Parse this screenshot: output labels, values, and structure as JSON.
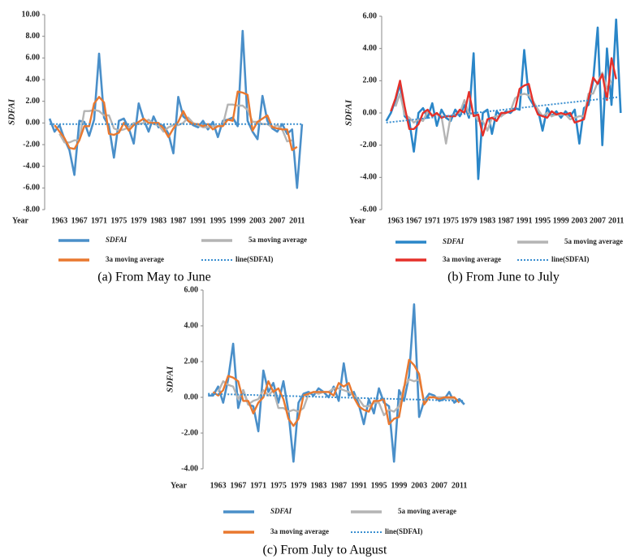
{
  "chart_data": [
    {
      "type": "line",
      "caption": "(a) From May to June",
      "y_label": "SDFAI",
      "x_label": "Year",
      "x": [
        1961,
        1962,
        1963,
        1964,
        1965,
        1966,
        1967,
        1968,
        1969,
        1970,
        1971,
        1972,
        1973,
        1974,
        1975,
        1976,
        1977,
        1978,
        1979,
        1980,
        1981,
        1982,
        1983,
        1984,
        1985,
        1986,
        1987,
        1988,
        1989,
        1990,
        1991,
        1992,
        1993,
        1994,
        1995,
        1996,
        1997,
        1998,
        1999,
        2000,
        2001,
        2002,
        2003,
        2004,
        2005,
        2006,
        2007,
        2008,
        2009,
        2010,
        2011,
        2012
      ],
      "series": [
        {
          "name": "SDFAI",
          "color": "#4a8fc9",
          "values": [
            0.4,
            -0.8,
            -0.2,
            -1.5,
            -2.5,
            -4.8,
            0.2,
            0.1,
            -1.2,
            0.3,
            6.4,
            0.5,
            -0.3,
            -3.2,
            0.2,
            0.4,
            -0.5,
            -1.9,
            1.8,
            0.3,
            -0.8,
            0.6,
            -0.4,
            -0.2,
            -1.0,
            -2.8,
            2.4,
            0.6,
            0.2,
            -0.2,
            -0.4,
            0.2,
            -0.6,
            0.1,
            -1.3,
            0.2,
            0.3,
            0.5,
            -0.3,
            8.5,
            0.2,
            -0.8,
            -1.5,
            2.5,
            0.2,
            -0.5,
            -0.8,
            -0.1,
            -1.0,
            -0.6,
            -6.0,
            -0.1
          ]
        },
        {
          "name": "5a moving average",
          "color": "#b4b4b4",
          "values": [
            null,
            null,
            -1.0,
            -1.8,
            -1.8,
            -1.6,
            -1.6,
            1.1,
            1.1,
            1.2,
            1.1,
            0.7,
            0.7,
            -0.5,
            -0.7,
            -0.6,
            -0.4,
            0.0,
            -0.1,
            0.0,
            0.3,
            -0.1,
            -0.2,
            -0.8,
            -0.4,
            -0.2,
            -0.2,
            0.0,
            0.5,
            0.0,
            -0.2,
            -0.4,
            -0.4,
            -0.3,
            -0.3,
            -0.2,
            1.7,
            1.7,
            1.6,
            1.6,
            1.2,
            0.1,
            0.1,
            -0.1,
            -0.1,
            -0.4,
            -0.2,
            -0.6,
            -1.7,
            -1.6,
            null,
            null
          ]
        },
        {
          "name": "3a moving average",
          "color": "#e9782f",
          "values": [
            null,
            -0.2,
            -0.8,
            -1.4,
            -2.3,
            -2.4,
            -1.6,
            -0.3,
            -0.3,
            1.8,
            2.4,
            1.9,
            -1.0,
            -1.1,
            -0.9,
            0.0,
            -0.7,
            -0.2,
            0.1,
            0.4,
            0.0,
            0.0,
            0.0,
            -0.5,
            -1.3,
            -0.5,
            0.1,
            1.1,
            0.2,
            -0.1,
            -0.1,
            -0.3,
            -0.1,
            -0.6,
            -0.3,
            -0.3,
            0.3,
            0.2,
            2.9,
            2.8,
            2.6,
            -0.7,
            0.1,
            0.4,
            0.7,
            -0.4,
            -0.5,
            -0.6,
            -0.6,
            -2.5,
            -2.2,
            null
          ]
        },
        {
          "name": "line(SDFAI)",
          "color": "#3a8fd0",
          "dotted": true,
          "x": [
            1961,
            2012
          ],
          "values": [
            -0.1,
            -0.1
          ]
        }
      ],
      "xlim": [
        1960,
        2013
      ],
      "xticks": [
        1963,
        1967,
        1971,
        1975,
        1979,
        1983,
        1987,
        1991,
        1995,
        1999,
        2003,
        2007,
        2011
      ],
      "ylim": [
        -8,
        10
      ],
      "yticks": [
        {
          "value": -8,
          "label": "-8.00"
        },
        {
          "value": -6,
          "label": "-6.00"
        },
        {
          "value": -4,
          "label": "-4.00"
        },
        {
          "value": -2,
          "label": "-2.00"
        },
        {
          "value": 0,
          "label": "0.00"
        },
        {
          "value": 2,
          "label": "2.00"
        },
        {
          "value": 4,
          "label": "4.00"
        },
        {
          "value": 6,
          "label": "6.00"
        },
        {
          "value": 8,
          "label": "8.00"
        },
        {
          "value": 10,
          "label": "10.00"
        }
      ]
    },
    {
      "type": "line",
      "caption": "(b) From June to July",
      "y_label": "SDFAI",
      "x_label": "Year",
      "x": [
        1961,
        1962,
        1963,
        1964,
        1965,
        1966,
        1967,
        1968,
        1969,
        1970,
        1971,
        1972,
        1973,
        1974,
        1975,
        1976,
        1977,
        1978,
        1979,
        1980,
        1981,
        1982,
        1983,
        1984,
        1985,
        1986,
        1987,
        1988,
        1989,
        1990,
        1991,
        1992,
        1993,
        1994,
        1995,
        1996,
        1997,
        1998,
        1999,
        2000,
        2001,
        2002,
        2003,
        2004,
        2005,
        2006,
        2007,
        2008,
        2009,
        2010,
        2011,
        2012
      ],
      "series": [
        {
          "name": "SDFAI",
          "color": "#2a86c8",
          "values": [
            -0.5,
            0.0,
            0.8,
            1.8,
            -0.2,
            -0.5,
            -2.4,
            0.0,
            0.3,
            -0.3,
            0.6,
            -0.8,
            0.2,
            -0.3,
            -0.5,
            0.2,
            -0.2,
            0.5,
            -0.3,
            3.7,
            -4.1,
            0.0,
            0.2,
            -1.3,
            0.1,
            -0.2,
            0.1,
            0.0,
            0.3,
            0.2,
            3.9,
            1.0,
            0.5,
            0.2,
            -1.1,
            0.3,
            -0.2,
            0.1,
            -0.3,
            0.1,
            -0.2,
            0.2,
            -1.9,
            0.3,
            0.5,
            2.0,
            5.3,
            -2.0,
            4.0,
            0.5,
            5.8,
            0.0
          ]
        },
        {
          "name": "5a moving average",
          "color": "#b4b4b4",
          "values": [
            null,
            null,
            0.4,
            1.2,
            -0.1,
            -0.3,
            -0.6,
            -0.4,
            -0.5,
            0.1,
            -0.1,
            -0.1,
            -0.2,
            -1.9,
            -0.2,
            -0.1,
            0.0,
            0.8,
            -0.1,
            0.0,
            -0.5,
            -0.5,
            -1.1,
            -0.3,
            -0.2,
            -0.2,
            0.0,
            0.1,
            0.9,
            1.1,
            1.2,
            1.1,
            0.7,
            0.2,
            -0.2,
            0.0,
            -0.2,
            -0.1,
            -0.1,
            -0.1,
            -0.4,
            -0.3,
            -0.2,
            -0.2,
            1.2,
            1.2,
            1.9,
            2.5,
            1.5,
            2.0,
            null,
            null
          ]
        },
        {
          "name": "3a moving average",
          "color": "#e5302a",
          "values": [
            null,
            0.1,
            0.9,
            2.0,
            0.4,
            -1.0,
            -1.0,
            -0.7,
            0.0,
            0.2,
            -0.2,
            0.0,
            -0.3,
            -0.2,
            -0.2,
            -0.2,
            0.2,
            0.0,
            1.3,
            -0.2,
            -0.1,
            -1.4,
            -0.4,
            -0.3,
            -0.5,
            0.0,
            0.0,
            0.1,
            0.2,
            1.5,
            1.7,
            1.8,
            0.6,
            -0.1,
            -0.2,
            -0.3,
            0.1,
            -0.1,
            0.0,
            -0.1,
            0.0,
            -0.6,
            -0.5,
            -0.4,
            0.9,
            2.2,
            1.8,
            2.4,
            0.8,
            3.4,
            2.1,
            null
          ]
        },
        {
          "name": "line(SDFAI)",
          "color": "#3a8fd0",
          "dotted": true,
          "x": [
            1961,
            2012
          ],
          "values": [
            -0.6,
            1.0
          ]
        }
      ],
      "xlim": [
        1960,
        2013
      ],
      "xticks": [
        1963,
        1967,
        1971,
        1975,
        1979,
        1983,
        1987,
        1991,
        1995,
        1999,
        2003,
        2007,
        2011
      ],
      "ylim": [
        -6,
        6
      ],
      "yticks": [
        {
          "value": -6,
          "label": "-6.00"
        },
        {
          "value": -4,
          "label": "-4.00"
        },
        {
          "value": -2,
          "label": "-2.00"
        },
        {
          "value": 0,
          "label": "0.00"
        },
        {
          "value": 2,
          "label": "2.00"
        },
        {
          "value": 4,
          "label": "4.00"
        },
        {
          "value": 6,
          "label": "6.00"
        }
      ]
    },
    {
      "type": "line",
      "caption": "(c) From July to August",
      "y_label": "SDFAI",
      "x_label": "Year",
      "x": [
        1961,
        1962,
        1963,
        1964,
        1965,
        1966,
        1967,
        1968,
        1969,
        1970,
        1971,
        1972,
        1973,
        1974,
        1975,
        1976,
        1977,
        1978,
        1979,
        1980,
        1981,
        1982,
        1983,
        1984,
        1985,
        1986,
        1987,
        1988,
        1989,
        1990,
        1991,
        1992,
        1993,
        1994,
        1995,
        1996,
        1997,
        1998,
        1999,
        2000,
        2001,
        2002,
        2003,
        2004,
        2005,
        2006,
        2007,
        2008,
        2009,
        2010,
        2011,
        2012
      ],
      "series": [
        {
          "name": "SDFAI",
          "color": "#4a8fc9",
          "values": [
            0.1,
            0.1,
            0.6,
            -0.3,
            1.0,
            3.0,
            -0.6,
            0.4,
            -0.4,
            -0.5,
            -1.9,
            1.5,
            0.3,
            0.8,
            -0.3,
            0.9,
            -0.8,
            -3.6,
            -0.3,
            0.2,
            0.3,
            0.1,
            0.5,
            0.3,
            0.0,
            0.6,
            -0.2,
            1.9,
            0.1,
            0.3,
            -0.4,
            -1.5,
            -0.1,
            -0.9,
            0.5,
            -0.3,
            -0.5,
            -3.6,
            0.4,
            -0.2,
            1.2,
            5.2,
            -1.1,
            -0.2,
            0.2,
            0.1,
            -0.2,
            -0.1,
            0.3,
            -0.3,
            -0.1,
            -0.4
          ]
        },
        {
          "name": "5a moving average",
          "color": "#b4b4b4",
          "values": [
            null,
            null,
            0.3,
            0.9,
            0.7,
            0.6,
            -0.1,
            0.4,
            -0.4,
            -0.2,
            -0.1,
            0.4,
            0.1,
            0.4,
            -0.6,
            -0.6,
            -0.8,
            -0.7,
            -0.8,
            -0.6,
            0.2,
            0.3,
            0.2,
            0.3,
            0.3,
            0.5,
            0.5,
            0.4,
            0.3,
            0.1,
            -0.1,
            -0.5,
            -0.5,
            -0.3,
            -0.3,
            -1.0,
            -0.7,
            -0.8,
            -0.5,
            0.6,
            1.0,
            0.9,
            1.0,
            -0.2,
            0.0,
            0.0,
            0.0,
            0.0,
            -0.1,
            -0.1,
            null,
            null
          ]
        },
        {
          "name": "3a moving average",
          "color": "#e9782f",
          "values": [
            null,
            0.3,
            0.1,
            0.4,
            1.2,
            1.1,
            0.9,
            -0.2,
            -0.2,
            -0.9,
            -0.3,
            0.0,
            0.9,
            0.3,
            0.5,
            -0.1,
            -1.2,
            -1.6,
            -1.2,
            0.1,
            0.2,
            0.3,
            0.3,
            0.3,
            0.3,
            0.1,
            0.8,
            0.6,
            0.8,
            0.0,
            -0.5,
            -0.7,
            -0.8,
            -0.2,
            -0.2,
            -0.1,
            -1.5,
            -1.2,
            -1.1,
            0.5,
            2.1,
            1.8,
            1.3,
            -0.4,
            0.0,
            0.0,
            -0.1,
            0.0,
            0.0,
            0.0,
            -0.3,
            null
          ]
        },
        {
          "name": "line(SDFAI)",
          "color": "#3a8fd0",
          "dotted": true,
          "x": [
            1961,
            2012
          ],
          "values": [
            0.2,
            -0.2
          ]
        }
      ],
      "xlim": [
        1960,
        2013
      ],
      "xticks": [
        1963,
        1967,
        1971,
        1975,
        1979,
        1983,
        1987,
        1991,
        1995,
        1999,
        2003,
        2007,
        2011
      ],
      "ylim": [
        -4,
        6
      ],
      "yticks": [
        {
          "value": -4,
          "label": "-4.00"
        },
        {
          "value": -2,
          "label": "-2.00"
        },
        {
          "value": 0,
          "label": "0.00"
        },
        {
          "value": 2,
          "label": "2.00"
        },
        {
          "value": 4,
          "label": "4.00"
        },
        {
          "value": 6,
          "label": "6.00"
        }
      ]
    }
  ]
}
